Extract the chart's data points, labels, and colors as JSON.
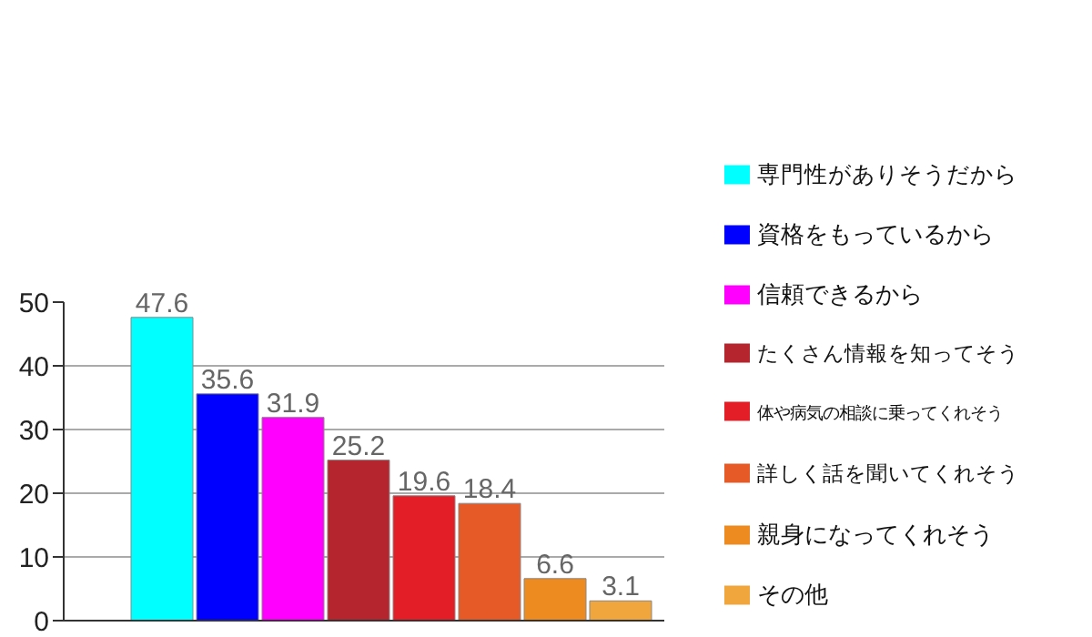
{
  "chart_data": {
    "type": "bar",
    "categories": [
      null
    ],
    "series": [
      {
        "name": "専門性がありそうだから",
        "color": "#00ffff",
        "values": [
          47.6
        ]
      },
      {
        "name": "資格をもっているから",
        "color": "#0000ff",
        "values": [
          35.6
        ]
      },
      {
        "name": "信頼できるから",
        "color": "#ff00ff",
        "values": [
          31.9
        ]
      },
      {
        "name": "たくさん情報を知ってそう",
        "color": "#b5252e",
        "values": [
          25.2
        ]
      },
      {
        "name": "体や病気の相談に乗ってくれそう",
        "color": "#e41e26",
        "values": [
          19.6
        ]
      },
      {
        "name": "詳しく話を聞いてくれそう",
        "color": "#e65a28",
        "values": [
          18.4
        ]
      },
      {
        "name": "親身になってくれそう",
        "color": "#ed8b20",
        "values": [
          6.6
        ]
      },
      {
        "name": "その他",
        "color": "#f0a63c",
        "values": [
          3.1
        ]
      }
    ],
    "ylim": [
      0,
      50
    ],
    "yticks": [
      0,
      10,
      20,
      30,
      40,
      50
    ],
    "grid": "y",
    "legend": "right",
    "tick_labels": "y",
    "data_labels": true
  }
}
